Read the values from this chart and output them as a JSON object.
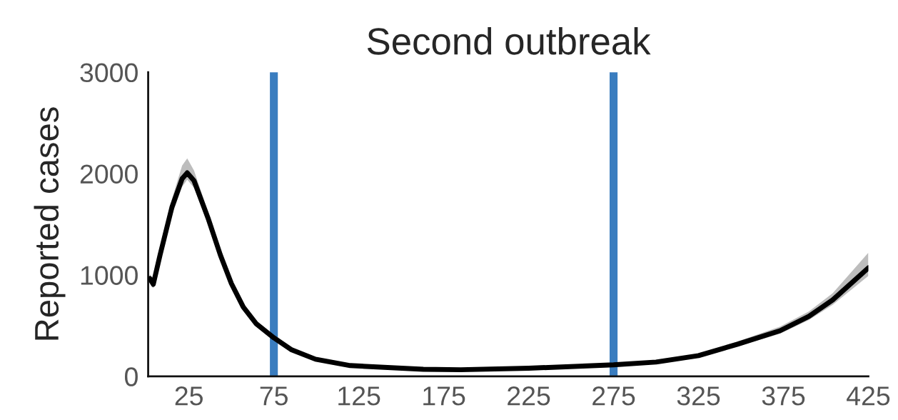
{
  "chart_data": {
    "type": "line",
    "title": "Second outbreak",
    "ylabel": "Reported cases",
    "x": [
      2,
      4,
      8,
      15,
      21,
      24,
      28,
      36.5,
      43.5,
      50,
      57,
      64.5,
      75,
      85.5,
      99.5,
      120,
      163,
      185,
      225,
      275,
      300,
      325,
      348,
      373,
      390,
      404,
      425
    ],
    "series": [
      {
        "color": "#000000",
        "values": [
          965,
          908,
          1197,
          1669,
          1950,
          2007,
          1930,
          1549,
          1197,
          915,
          683,
          521,
          380,
          261,
          169,
          106,
          70,
          65,
          80,
          113,
          141,
          204,
          317,
          450,
          592,
          754,
          1070
        ],
        "lower": [
          920,
          870,
          1140,
          1590,
          1870,
          1940,
          1860,
          1490,
          1150,
          875,
          650,
          495,
          360,
          245,
          158,
          98,
          63,
          58,
          72,
          104,
          130,
          190,
          295,
          420,
          555,
          705,
          990
        ],
        "upper": [
          1010,
          950,
          1250,
          1750,
          2080,
          2150,
          2030,
          1610,
          1245,
          960,
          715,
          550,
          405,
          280,
          182,
          115,
          78,
          73,
          89,
          124,
          155,
          222,
          345,
          490,
          640,
          820,
          1220
        ]
      }
    ],
    "xlim": [
      1,
      425
    ],
    "xticks": [
      25,
      75,
      125,
      175,
      225,
      275,
      325,
      375,
      425
    ],
    "ylim": [
      0,
      3000
    ],
    "yticks": [
      0,
      1000,
      2000,
      3000
    ],
    "ref_lines": [
      {
        "axis": "x",
        "value": 75,
        "color": "#3a7dbf"
      },
      {
        "axis": "x",
        "value": 275,
        "color": "#3a7dbf"
      }
    ],
    "grid": false,
    "line_style": "solid"
  }
}
